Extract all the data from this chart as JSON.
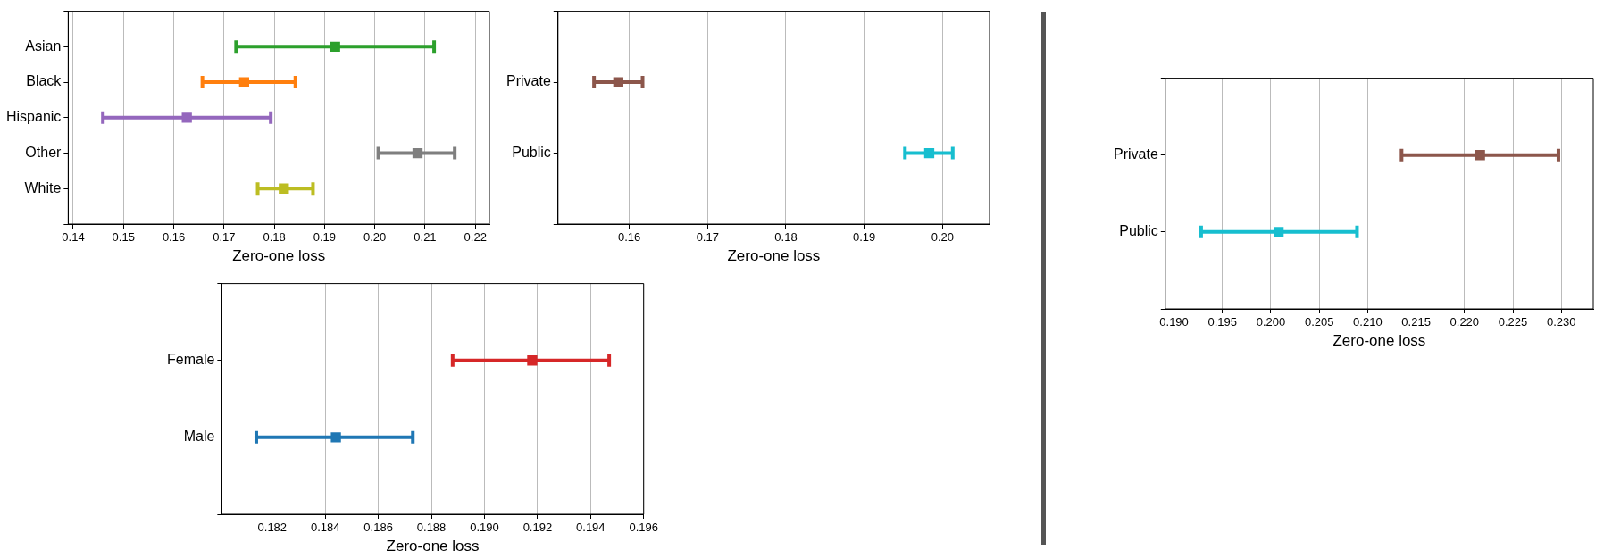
{
  "chart_data": [
    {
      "type": "scatter",
      "orientation": "horizontal",
      "marker": "square",
      "grid": "x",
      "xlabel": "Zero-one loss",
      "categories": [
        "Asian",
        "Black",
        "Hispanic",
        "Other",
        "White"
      ],
      "values": [
        0.1921,
        0.174,
        0.1626,
        0.2085,
        0.1819
      ],
      "errors": [
        [
          0.1724,
          0.2118
        ],
        [
          0.1657,
          0.1842
        ],
        [
          0.1459,
          0.1793
        ],
        [
          0.2007,
          0.2159
        ],
        [
          0.1767,
          0.1877
        ]
      ],
      "colors": [
        "#2ca02c",
        "#ff7f0e",
        "#9467bd",
        "#7f7f7f",
        "#bcbd22"
      ],
      "xlim": [
        0.139,
        0.2228
      ],
      "xticks": [
        0.14,
        0.15,
        0.16,
        0.17,
        0.18,
        0.19,
        {
          "value": 0.2,
          "label": "0.20"
        },
        0.21,
        0.22
      ]
    },
    {
      "type": "scatter",
      "orientation": "horizontal",
      "marker": "square",
      "grid": "x",
      "xlabel": "Zero-one loss",
      "categories": [
        "Private",
        "Public"
      ],
      "values": [
        0.1586,
        0.1983
      ],
      "errors": [
        [
          0.1555,
          0.1617
        ],
        [
          0.1952,
          0.2013
        ]
      ],
      "colors": [
        "#8c564b",
        "#17becf"
      ],
      "xlim": [
        0.1509,
        0.206
      ],
      "xticks": [
        0.16,
        0.17,
        0.18,
        0.19,
        {
          "value": 0.2,
          "label": "0.20"
        }
      ]
    },
    {
      "type": "scatter",
      "orientation": "horizontal",
      "marker": "square",
      "grid": "x",
      "xlabel": "Zero-one loss",
      "categories": [
        "Female",
        "Male"
      ],
      "values": [
        0.1918,
        0.1844
      ],
      "errors": [
        [
          0.1888,
          0.1947
        ],
        [
          0.1814,
          0.1873
        ]
      ],
      "colors": [
        "#d62728",
        "#1f77b4"
      ],
      "xlim": [
        0.1801,
        0.196
      ],
      "xticks": [
        0.182,
        0.184,
        0.186,
        0.188,
        {
          "value": 0.19,
          "label": "0.190"
        },
        0.192,
        0.194,
        0.196
      ]
    },
    {
      "type": "scatter",
      "orientation": "horizontal",
      "marker": "square",
      "grid": "x",
      "xlabel": "Zero-one loss",
      "categories": [
        "Private",
        "Public"
      ],
      "values": [
        0.2216,
        0.2008
      ],
      "errors": [
        [
          0.2135,
          0.2297
        ],
        [
          0.1928,
          0.2089
        ]
      ],
      "colors": [
        "#8c564b",
        "#17becf"
      ],
      "xlim": [
        0.1891,
        0.2333
      ],
      "xticks": [
        {
          "value": 0.19,
          "label": "0.190"
        },
        0.195,
        {
          "value": 0.2,
          "label": "0.200"
        },
        0.205,
        {
          "value": 0.21,
          "label": "0.210"
        },
        0.215,
        {
          "value": 0.22,
          "label": "0.220"
        },
        0.225,
        {
          "value": 0.23,
          "label": "0.230"
        }
      ]
    }
  ]
}
